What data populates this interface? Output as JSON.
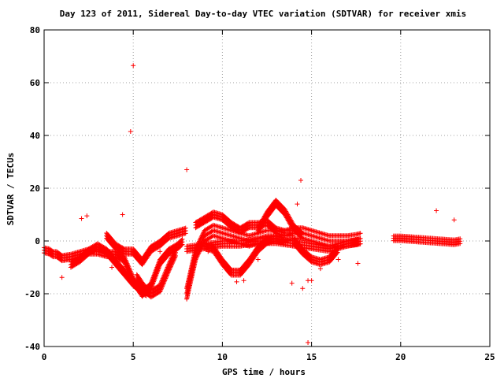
{
  "chart_data": {
    "type": "scatter",
    "title": "Day 123 of 2011, Sidereal Day-to-day VTEC variation (SDTVAR) for receiver xmis",
    "xlabel": "GPS time / hours",
    "ylabel": "SDTVAR / TECUs",
    "xlim": [
      0,
      25
    ],
    "ylim": [
      -40,
      80
    ],
    "xticks": [
      "0",
      "5",
      "10",
      "15",
      "20",
      "25"
    ],
    "yticks": [
      "-40",
      "-20",
      "0",
      "20",
      "40",
      "60",
      "80"
    ],
    "grid": true,
    "marker": "+",
    "color": "#ff0000",
    "outliers": {
      "x": [
        5.0,
        4.85,
        8.0,
        14.4,
        4.4,
        2.1,
        2.4,
        1.0,
        13.9,
        14.5,
        14.8,
        14.2,
        15.5,
        15.0,
        17.6,
        22.0,
        23.0,
        14.8,
        10.8,
        11.2,
        12.0,
        3.8,
        6.5,
        9.2,
        16.5
      ],
      "y": [
        66.5,
        41.5,
        27.0,
        23.0,
        10.0,
        8.5,
        9.5,
        -13.8,
        -16.0,
        -18.0,
        -38.5,
        14.0,
        -10.5,
        -15.0,
        -8.5,
        11.5,
        8.0,
        -15.0,
        -15.5,
        -15.0,
        -7.0,
        -10.0,
        -4.0,
        -4.0,
        -7.0
      ]
    },
    "bands": [
      {
        "x": [
          0,
          0.3,
          0.5,
          0.7,
          1.0,
          1.5,
          2.0,
          2.5,
          3.0,
          3.5,
          4.0,
          4.5,
          5.0,
          5.5,
          6.0,
          6.5,
          7.0,
          7.5,
          7.8
        ],
        "y": [
          -3.5,
          -4.0,
          -5.0,
          -5.0,
          -6.5,
          -6.0,
          -5.0,
          -4.0,
          -4.0,
          -5.0,
          -5.0,
          -7.0,
          -15.0,
          -20.0,
          -17.0,
          -8.0,
          -4.0,
          -2.0,
          0.0
        ],
        "h": 2.0
      },
      {
        "x": [
          1.5,
          2.0,
          2.5,
          3.0,
          3.5,
          4.0,
          4.5,
          5.0,
          5.5,
          5.8
        ],
        "y": [
          -9.0,
          -7.0,
          -4.0,
          -2.0,
          -4.0,
          -8.0,
          -12.0,
          -16.0,
          -19.0,
          -20.0
        ],
        "h": 2.0
      },
      {
        "x": [
          3.5,
          4.0,
          4.5,
          5.0,
          5.5,
          6.0,
          6.5,
          7.0,
          7.5,
          8.0
        ],
        "y": [
          2.0,
          -2.0,
          -4.0,
          -4.0,
          -8.0,
          -3.0,
          -1.0,
          2.0,
          3.0,
          4.0
        ],
        "h": 2.0
      },
      {
        "x": [
          5.2,
          5.6,
          6.0,
          6.5,
          7.0,
          7.4
        ],
        "y": [
          -14.0,
          -18.0,
          -20.0,
          -18.0,
          -10.0,
          -4.0
        ],
        "h": 2.5
      },
      {
        "x": [
          8.0,
          8.2,
          8.5,
          9.0,
          9.5,
          10.0,
          10.5,
          11.0,
          11.5,
          12.0,
          12.5,
          13.0,
          13.5,
          14.0,
          14.5,
          15.0,
          15.5,
          16.0,
          16.5,
          17.0,
          17.5,
          17.8
        ],
        "y": [
          -20.0,
          -14.0,
          -5.0,
          2.0,
          4.0,
          3.0,
          2.0,
          1.0,
          0.0,
          1.0,
          2.0,
          2.0,
          2.0,
          3.0,
          3.0,
          2.0,
          1.0,
          0.0,
          0.0,
          0.0,
          0.5,
          1.0
        ],
        "h": 4.0
      },
      {
        "x": [
          8.5,
          9.0,
          9.5,
          10.0,
          10.5,
          11.0,
          11.5,
          12.0,
          12.5,
          13.0,
          13.5,
          14.0
        ],
        "y": [
          6.0,
          8.0,
          10.0,
          9.0,
          6.0,
          4.0,
          6.0,
          6.0,
          7.0,
          4.0,
          3.0,
          3.0
        ],
        "h": 2.0
      },
      {
        "x": [
          9.0,
          9.5,
          10.0,
          10.5,
          11.0,
          11.5,
          12.0,
          12.5,
          13.0,
          13.5
        ],
        "y": [
          -2.0,
          -3.0,
          -8.0,
          -12.0,
          -12.0,
          -8.0,
          -3.0,
          0.0,
          1.0,
          0.0
        ],
        "h": 2.0
      },
      {
        "x": [
          12.0,
          12.5,
          13.0,
          13.5,
          14.0,
          14.5
        ],
        "y": [
          4.0,
          10.0,
          14.5,
          11.0,
          5.0,
          2.0
        ],
        "h": 2.0
      },
      {
        "x": [
          14.0,
          14.5,
          15.0,
          15.5,
          16.0,
          16.5
        ],
        "y": [
          0.0,
          -4.0,
          -7.0,
          -8.0,
          -7.0,
          -3.0
        ],
        "h": 2.0
      },
      {
        "x": [
          8.0,
          9.0,
          10.0,
          11.0,
          12.0,
          13.0,
          14.0,
          15.0,
          16.0,
          17.0,
          17.8
        ],
        "y": [
          -3.0,
          -2.0,
          -1.0,
          -1.0,
          0.0,
          0.0,
          -1.0,
          -2.0,
          -3.0,
          -1.0,
          0.0
        ],
        "h": 2.0
      },
      {
        "x": [
          19.6,
          20.0,
          21.0,
          22.0,
          23.0,
          23.4
        ],
        "y": [
          1.0,
          1.0,
          0.5,
          0.0,
          -0.5,
          0.0
        ],
        "h": 1.8
      }
    ]
  }
}
